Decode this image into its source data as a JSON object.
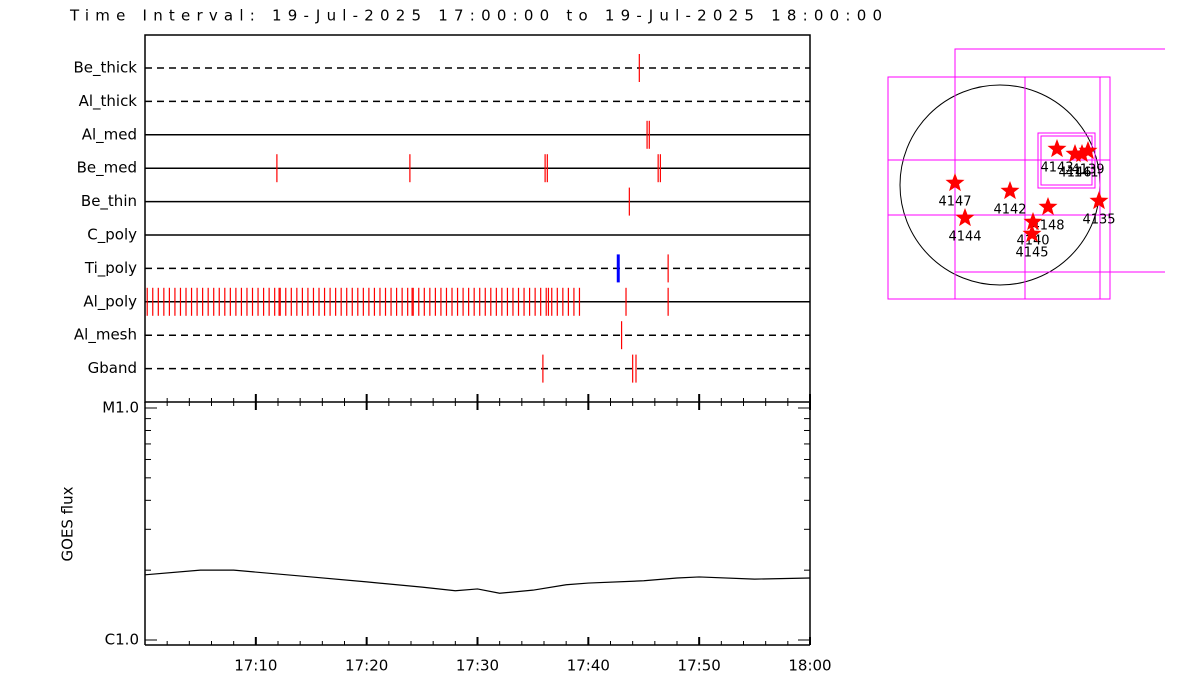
{
  "chart_data": [
    {
      "type": "timeline",
      "title": "Time Interval: 19-Jul-2025 17:00:00 to 19-Jul-2025 18:00:00",
      "xlim": [
        0,
        60
      ],
      "xticks": [
        {
          "value": 10,
          "label": "17:10"
        },
        {
          "value": 20,
          "label": "17:20"
        },
        {
          "value": 30,
          "label": "17:30"
        },
        {
          "value": 40,
          "label": "17:40"
        },
        {
          "value": 50,
          "label": "17:50"
        },
        {
          "value": 60,
          "label": "18:00"
        }
      ],
      "series": [
        {
          "name": "Be_thick",
          "style": "dashed",
          "color": "#ff0000",
          "x": [
            44.6
          ]
        },
        {
          "name": "Al_thick",
          "style": "dashed",
          "color": "#ff0000",
          "x": []
        },
        {
          "name": "Al_med",
          "style": "solid",
          "color": "#ff0000",
          "x": [
            45.3,
            45.5
          ]
        },
        {
          "name": "Be_med",
          "style": "solid",
          "color": "#ff0000",
          "x": [
            11.9,
            23.9,
            36.1,
            36.3,
            46.3,
            46.5
          ]
        },
        {
          "name": "Be_thin",
          "style": "solid",
          "color": "#ff0000",
          "x": [
            43.7
          ]
        },
        {
          "name": "C_poly",
          "style": "solid",
          "color": "#ff0000",
          "x": []
        },
        {
          "name": "Ti_poly",
          "style": "dashed",
          "color": "#ff0000",
          "colors": [
            "#0000ff",
            "#ff0000"
          ],
          "x": [
            42.7,
            47.2
          ]
        },
        {
          "name": "Al_poly",
          "style": "solid",
          "color": "#ff0000",
          "x": [
            0.2,
            0.7,
            1.2,
            1.7,
            2.2,
            2.7,
            3.2,
            3.7,
            4.2,
            4.7,
            5.2,
            5.7,
            6.2,
            6.7,
            7.2,
            7.7,
            8.2,
            8.7,
            9.2,
            9.7,
            10.2,
            10.7,
            11.2,
            11.7,
            12.2,
            12.7,
            13.2,
            13.7,
            14.2,
            14.7,
            15.2,
            15.7,
            16.2,
            16.7,
            17.2,
            17.7,
            18.2,
            18.7,
            19.2,
            19.7,
            20.2,
            20.7,
            21.2,
            21.7,
            22.2,
            22.7,
            23.2,
            23.7,
            24.2,
            24.7,
            25.2,
            25.7,
            26.2,
            26.7,
            27.2,
            27.7,
            28.2,
            28.7,
            29.2,
            29.7,
            30.2,
            30.7,
            31.2,
            31.7,
            32.2,
            32.7,
            33.2,
            33.7,
            34.2,
            34.7,
            35.2,
            35.7,
            36.2,
            36.7,
            37.2,
            37.7,
            38.2,
            38.7,
            39.2,
            12.1,
            24.1,
            36.4,
            43.4,
            47.2
          ]
        },
        {
          "name": "Al_mesh",
          "style": "dashed",
          "color": "#ff0000",
          "x": [
            43.0
          ]
        },
        {
          "name": "Gband",
          "style": "dashed",
          "color": "#ff0000",
          "x": [
            35.9,
            44.0,
            44.3
          ]
        }
      ]
    },
    {
      "type": "line",
      "y_label": "GOES flux",
      "log_scale": true,
      "color": "#000000",
      "xlim": [
        0,
        60
      ],
      "ylim": [
        1e-06,
        1e-05
      ],
      "yticks": [
        {
          "value": 1e-06,
          "label": "C1.0"
        },
        {
          "value": 1e-05,
          "label": "M1.0"
        }
      ],
      "x": [
        0,
        5,
        8,
        15,
        20,
        25,
        28,
        30,
        32,
        35,
        38,
        40,
        45,
        48,
        50,
        55,
        60
      ],
      "values": [
        1.91e-06,
        2e-06,
        2e-06,
        1.87e-06,
        1.78e-06,
        1.69e-06,
        1.63e-06,
        1.66e-06,
        1.59e-06,
        1.64e-06,
        1.73e-06,
        1.76e-06,
        1.8e-06,
        1.85e-06,
        1.87e-06,
        1.83e-06,
        1.85e-06
      ]
    },
    {
      "type": "map",
      "labels": [
        "4147",
        "4144",
        "4142",
        "4148",
        "4140",
        "4145",
        "4135",
        "4143",
        "4146",
        "4139",
        "4141"
      ]
    }
  ]
}
